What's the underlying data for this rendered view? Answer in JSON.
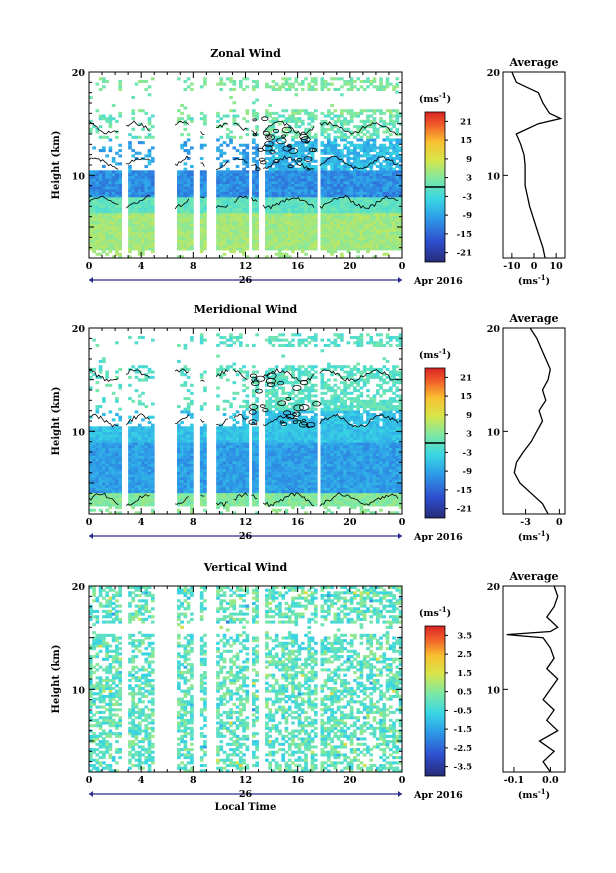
{
  "chart_data": [
    {
      "type": "heatmap",
      "title": "Zonal Wind",
      "ylabel": "Height (km)",
      "xlabel": "",
      "x_ticks": [
        "0",
        "4",
        "8",
        "12",
        "16",
        "20",
        "0"
      ],
      "y_ticks": [
        "10",
        "20"
      ],
      "xlim": [
        0,
        24
      ],
      "ylim": [
        2,
        20
      ],
      "date_day": "26",
      "date_month_year": "Apr 2016",
      "colorbar": {
        "unit": "(ms",
        "unit_exp": "-1",
        "unit_close": ")",
        "range": [
          -24,
          24
        ],
        "ticks": [
          "21",
          "15",
          "9",
          "3",
          "-3",
          "-9",
          "-15",
          "-21"
        ],
        "zero_line": true
      },
      "profile": {
        "title": "Average",
        "x_ticks": [
          "-10",
          "0",
          "10"
        ],
        "xlim": [
          -14,
          14
        ],
        "y_ticks": [
          "10",
          "20"
        ],
        "xlabel": "(ms",
        "xlabel_exp": "-1",
        "xlabel_close": ")",
        "heights_km": [
          2,
          3,
          4,
          5,
          6,
          7,
          8,
          9,
          10,
          11,
          12,
          13,
          14,
          15,
          15.5,
          16,
          17,
          18,
          19,
          20
        ],
        "values": [
          5,
          4,
          2.5,
          1,
          -0.5,
          -2,
          -3,
          -4,
          -4,
          -4,
          -4.5,
          -6,
          -8,
          2,
          12,
          7,
          4,
          2,
          -8,
          -10
        ]
      }
    },
    {
      "type": "heatmap",
      "title": "Meridional Wind",
      "ylabel": "Height (km)",
      "xlabel": "",
      "x_ticks": [
        "0",
        "4",
        "8",
        "12",
        "16",
        "20",
        "0"
      ],
      "y_ticks": [
        "10",
        "20"
      ],
      "xlim": [
        0,
        24
      ],
      "ylim": [
        2,
        20
      ],
      "date_day": "26",
      "date_month_year": "Apr 2016",
      "colorbar": {
        "unit": "(ms",
        "unit_exp": "-1",
        "unit_close": ")",
        "range": [
          -24,
          24
        ],
        "ticks": [
          "21",
          "15",
          "9",
          "3",
          "-3",
          "-9",
          "-15",
          "-21"
        ],
        "zero_line": true
      },
      "profile": {
        "title": "Average",
        "x_ticks": [
          "-3",
          "0"
        ],
        "xlim": [
          -5,
          0.5
        ],
        "y_ticks": [
          "10",
          "20"
        ],
        "xlabel": "(ms",
        "xlabel_exp": "-1",
        "xlabel_close": ")",
        "heights_km": [
          2,
          3,
          4,
          5,
          6,
          7,
          8,
          9,
          10,
          11,
          12,
          13,
          14,
          15,
          16,
          17,
          18,
          19,
          20
        ],
        "values": [
          -1,
          -1.5,
          -2.5,
          -3.5,
          -4,
          -3.8,
          -3.2,
          -2.5,
          -2,
          -1.5,
          -1.8,
          -1.2,
          -1.5,
          -1,
          -0.8,
          -1.2,
          -1.6,
          -2,
          -2.6
        ]
      }
    },
    {
      "type": "heatmap",
      "title": "Vertical Wind",
      "ylabel": "Height (km)",
      "xlabel": "Local Time",
      "x_ticks": [
        "0",
        "4",
        "8",
        "12",
        "16",
        "20",
        "0"
      ],
      "y_ticks": [
        "10",
        "20"
      ],
      "xlim": [
        0,
        24
      ],
      "ylim": [
        2,
        20
      ],
      "date_day": "26",
      "date_month_year": "Apr 2016",
      "colorbar": {
        "unit": "(ms",
        "unit_exp": "-1",
        "unit_close": ")",
        "range": [
          -4,
          4
        ],
        "ticks": [
          "3.5",
          "2.5",
          "1.5",
          "0.5",
          "-0.5",
          "-1.5",
          "-2.5",
          "-3.5"
        ],
        "zero_line": false
      },
      "profile": {
        "title": "Average",
        "x_ticks": [
          "-0.1",
          "0.0"
        ],
        "xlim": [
          -0.13,
          0.04
        ],
        "y_ticks": [
          "10",
          "20"
        ],
        "xlabel": "(ms",
        "xlabel_exp": "-1",
        "xlabel_close": ")",
        "heights_km": [
          2,
          3,
          4,
          5,
          6,
          7,
          8,
          9,
          10,
          11,
          12,
          13,
          14,
          15,
          15.3,
          15.6,
          16,
          17,
          18,
          19,
          20
        ],
        "values": [
          0.0,
          -0.02,
          0.01,
          -0.03,
          0.02,
          -0.01,
          0.01,
          -0.02,
          0.0,
          0.02,
          -0.01,
          0.01,
          0.0,
          -0.02,
          -0.12,
          0.0,
          0.02,
          -0.01,
          0.01,
          0.02,
          0.01
        ]
      }
    }
  ]
}
